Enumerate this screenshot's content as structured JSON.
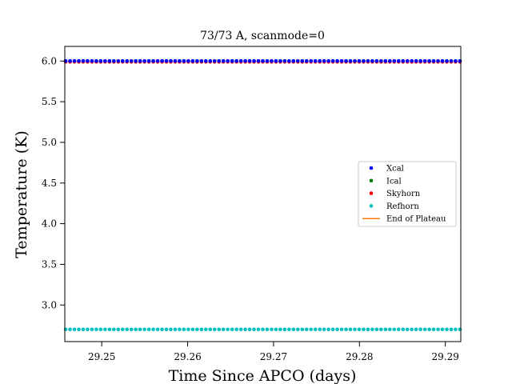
{
  "chart_data": {
    "type": "scatter",
    "title": "73/73 A, scanmode=0",
    "xlabel": "Time Since APCO (days)",
    "ylabel": "Temperature (K)",
    "xlim": [
      29.2457,
      29.2918
    ],
    "ylim": [
      2.55,
      6.18
    ],
    "x_ticks": [
      29.25,
      29.26,
      29.27,
      29.28,
      29.29
    ],
    "x_tick_labels": [
      "29.25",
      "29.26",
      "29.27",
      "29.28",
      "29.29"
    ],
    "y_ticks": [
      3.0,
      3.5,
      4.0,
      4.5,
      5.0,
      5.5,
      6.0
    ],
    "y_tick_labels": [
      "3.0",
      "3.5",
      "4.0",
      "4.5",
      "5.0",
      "5.5",
      "6.0"
    ],
    "x_sampling": {
      "start": 29.2458,
      "end": 29.2917,
      "count": 91
    },
    "series": [
      {
        "name": "Xcal",
        "color": "#0000ff",
        "level": 6.0
      },
      {
        "name": "Ical",
        "color": "#008000",
        "level": 6.0
      },
      {
        "name": "Skyhorn",
        "color": "#ff0000",
        "level": 5.99
      },
      {
        "name": "Refhorn",
        "color": "#00bfbf",
        "level": 2.7
      },
      {
        "name": "End of Plateau",
        "color": "#ff7f0e",
        "kind": "line"
      }
    ],
    "legend": "center-right",
    "grid": false
  }
}
